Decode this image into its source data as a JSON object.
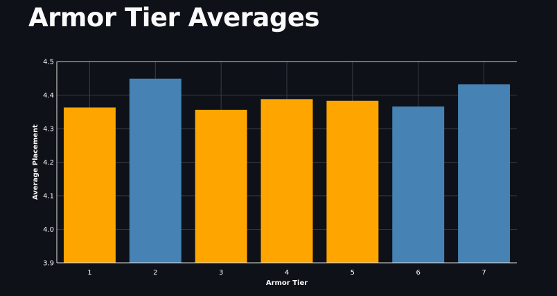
{
  "header": {
    "title": "Armor Tier Averages"
  },
  "chart_data": {
    "type": "bar",
    "title": "",
    "xlabel": "Armor Tier",
    "ylabel": "Average Placement",
    "categories": [
      "1",
      "2",
      "3",
      "4",
      "5",
      "6",
      "7"
    ],
    "values": [
      4.363,
      4.449,
      4.356,
      4.388,
      4.383,
      4.366,
      4.432
    ],
    "highlighted": [
      false,
      true,
      false,
      false,
      false,
      true,
      true
    ],
    "ylim": [
      3.9,
      4.5
    ],
    "yticks": [
      "3.9",
      "4.0",
      "4.1",
      "4.2",
      "4.3",
      "4.4",
      "4.5"
    ],
    "grid": true,
    "legend": "none",
    "colors": {
      "default_bar": "#ffa500",
      "highlight_bar": "#4682b4",
      "background": "#0e1117",
      "grid": "#3a3d44"
    }
  }
}
